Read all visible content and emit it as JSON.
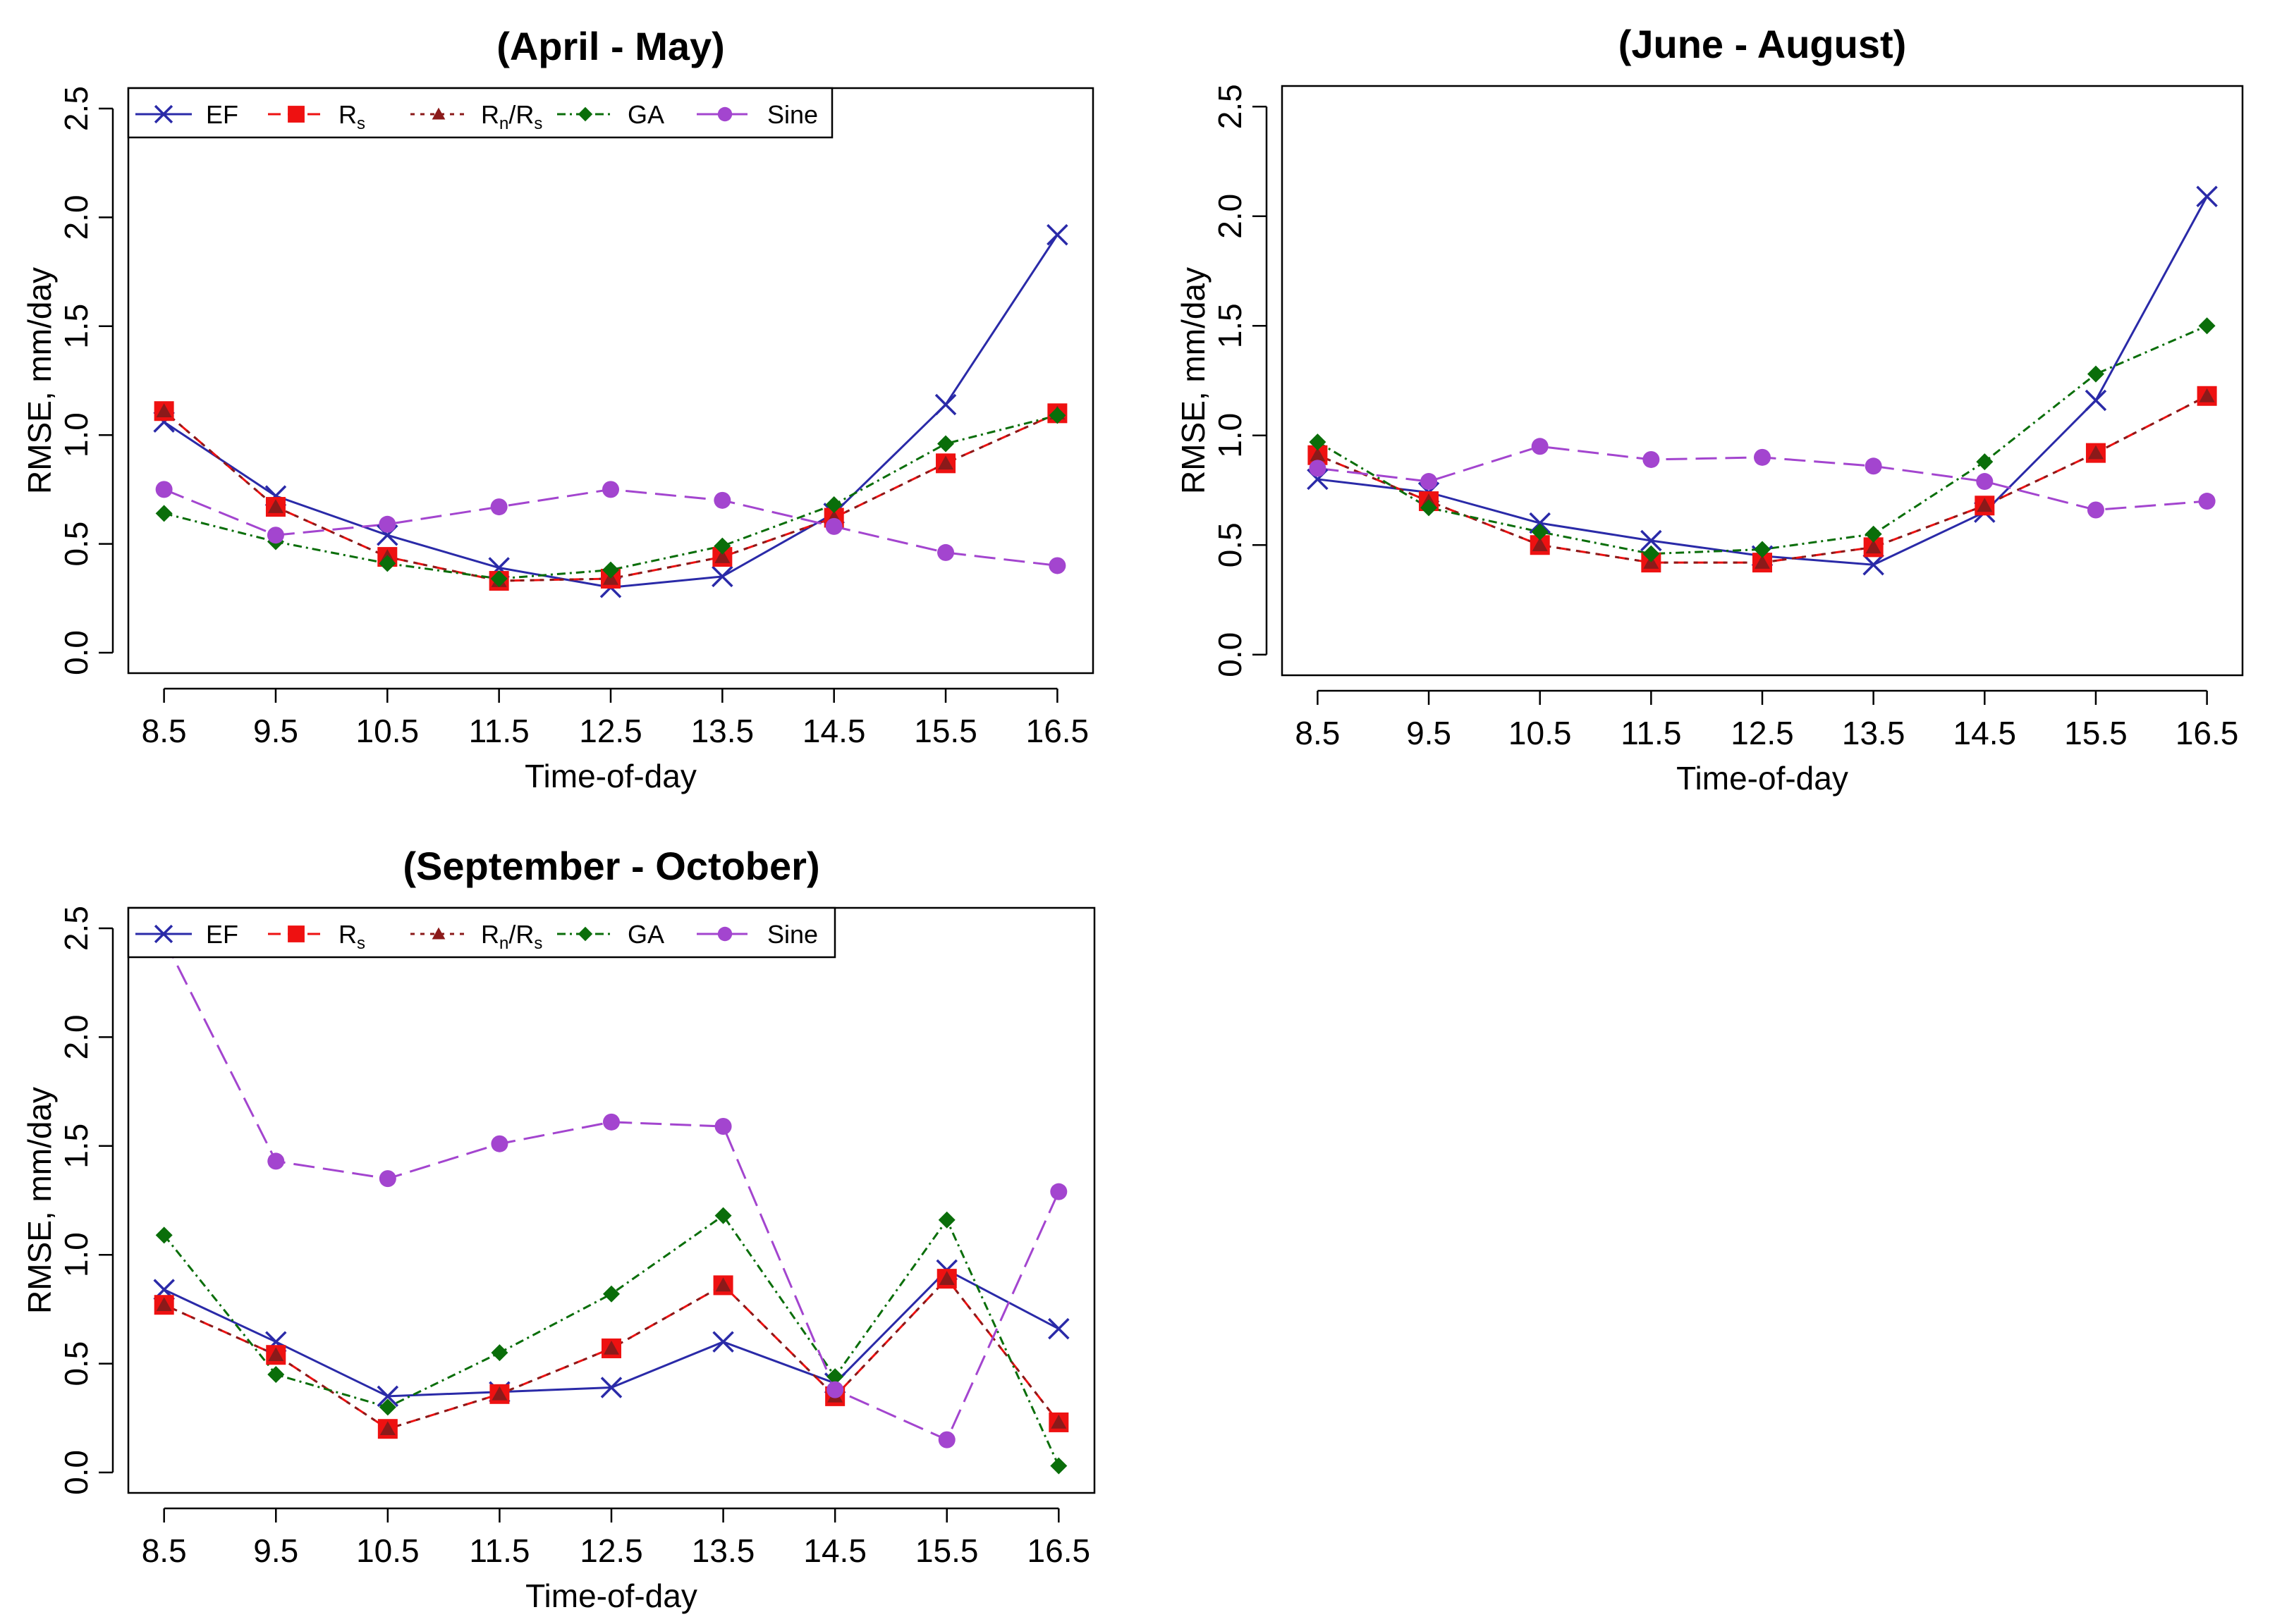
{
  "figure": {
    "colors": {
      "EF": "#2a2aa8",
      "Rs": "#ee1111",
      "RnRs": "#8b1a1a",
      "GA": "#0a6e0a",
      "Sine": "#a345cf"
    }
  },
  "chart_data": [
    {
      "type": "line",
      "title": "(April - May)",
      "xlabel": "Time-of-day",
      "ylabel": "RMSE, mm/day",
      "ylim": [
        0,
        2.5
      ],
      "y_ticks": [
        "0.0",
        "0.5",
        "1.0",
        "1.5",
        "2.0",
        "2.5"
      ],
      "x": [
        "8.5",
        "9.5",
        "10.5",
        "11.5",
        "12.5",
        "13.5",
        "14.5",
        "15.5",
        "16.5"
      ],
      "legend": [
        "EF",
        "R",
        "R",
        "GA",
        "Sine"
      ],
      "legend_parts": {
        "rs_sub": "s",
        "rnrs_sub1": "n",
        "rnrs_slash": "/R",
        "rnrs_sub2": "s"
      },
      "series": [
        {
          "name": "EF",
          "values": [
            1.06,
            0.72,
            0.54,
            0.39,
            0.3,
            0.35,
            0.64,
            1.14,
            1.92
          ]
        },
        {
          "name": "Rs",
          "values": [
            1.11,
            0.67,
            0.44,
            0.33,
            0.34,
            0.44,
            0.62,
            0.87,
            1.1
          ]
        },
        {
          "name": "Rn/Rs",
          "values": [
            1.11,
            0.67,
            0.44,
            0.33,
            0.34,
            0.44,
            0.62,
            0.87,
            1.1
          ]
        },
        {
          "name": "GA",
          "values": [
            0.64,
            0.51,
            0.41,
            0.34,
            0.38,
            0.49,
            0.68,
            0.96,
            1.09
          ]
        },
        {
          "name": "Sine",
          "values": [
            0.75,
            0.54,
            0.59,
            0.67,
            0.75,
            0.7,
            0.58,
            0.46,
            0.4
          ]
        }
      ]
    },
    {
      "type": "line",
      "title": "(June - August)",
      "xlabel": "Time-of-day",
      "ylabel": "RMSE, mm/day",
      "ylim": [
        0,
        2.5
      ],
      "y_ticks": [
        "0.0",
        "0.5",
        "1.0",
        "1.5",
        "2.0",
        "2.5"
      ],
      "x": [
        "8.5",
        "9.5",
        "10.5",
        "11.5",
        "12.5",
        "13.5",
        "14.5",
        "15.5",
        "16.5"
      ],
      "legend": [],
      "series": [
        {
          "name": "EF",
          "values": [
            0.8,
            0.74,
            0.6,
            0.52,
            0.45,
            0.41,
            0.65,
            1.16,
            2.09
          ]
        },
        {
          "name": "Rs",
          "values": [
            0.91,
            0.7,
            0.5,
            0.42,
            0.42,
            0.49,
            0.68,
            0.92,
            1.18
          ]
        },
        {
          "name": "Rn/Rs",
          "values": [
            0.91,
            0.7,
            0.5,
            0.42,
            0.42,
            0.49,
            0.68,
            0.92,
            1.18
          ]
        },
        {
          "name": "GA",
          "values": [
            0.97,
            0.67,
            0.56,
            0.46,
            0.48,
            0.55,
            0.88,
            1.28,
            1.5
          ]
        },
        {
          "name": "Sine",
          "values": [
            0.85,
            0.79,
            0.95,
            0.89,
            0.9,
            0.86,
            0.79,
            0.66,
            0.7
          ]
        }
      ]
    },
    {
      "type": "line",
      "title": "(September - October)",
      "xlabel": "Time-of-day",
      "ylabel": "RMSE, mm/day",
      "ylim": [
        0,
        2.5
      ],
      "y_ticks": [
        "0.0",
        "0.5",
        "1.0",
        "1.5",
        "2.0",
        "2.5"
      ],
      "x": [
        "8.5",
        "9.5",
        "10.5",
        "11.5",
        "12.5",
        "13.5",
        "14.5",
        "15.5",
        "16.5"
      ],
      "legend": [
        "EF",
        "R",
        "R",
        "GA",
        "Sine"
      ],
      "legend_parts": {
        "rs_sub": "s",
        "rnrs_sub1": "n",
        "rnrs_slash": "/R",
        "rnrs_sub2": "s"
      },
      "series": [
        {
          "name": "EF",
          "values": [
            0.84,
            0.6,
            0.35,
            0.37,
            0.39,
            0.6,
            0.41,
            0.93,
            0.66
          ]
        },
        {
          "name": "Rs",
          "values": [
            0.77,
            0.54,
            0.2,
            0.36,
            0.57,
            0.86,
            0.35,
            0.89,
            0.23
          ]
        },
        {
          "name": "Rn/Rs",
          "values": [
            0.77,
            0.54,
            0.2,
            0.36,
            0.57,
            0.86,
            0.35,
            0.89,
            0.23
          ]
        },
        {
          "name": "GA",
          "values": [
            1.09,
            0.45,
            0.3,
            0.55,
            0.82,
            1.18,
            0.44,
            1.16,
            0.03
          ]
        },
        {
          "name": "Sine",
          "values": [
            2.45,
            1.43,
            1.35,
            1.51,
            1.61,
            1.59,
            0.38,
            0.15,
            1.29
          ]
        }
      ]
    }
  ]
}
